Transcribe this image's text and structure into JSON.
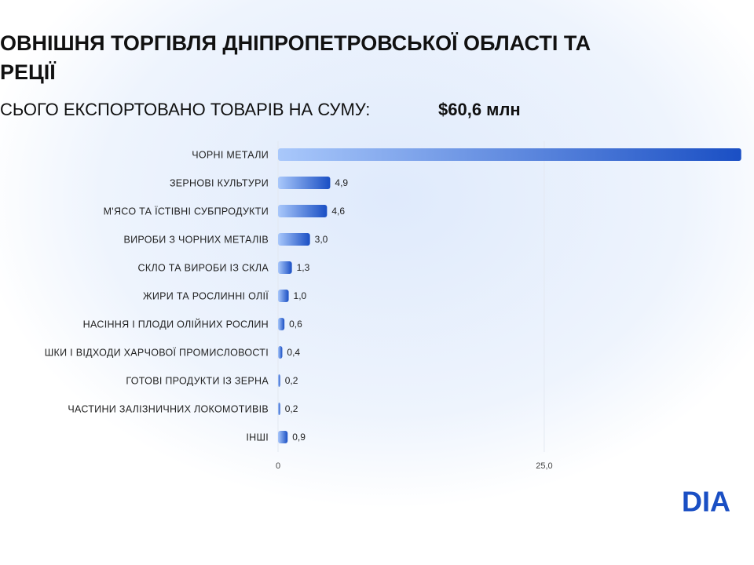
{
  "chart_data": {
    "type": "bar",
    "orientation": "horizontal",
    "title_lines": [
      "ОВНІШНЯ ТОРГІВЛЯ ДНІПРОПЕТРОВСЬКОЇ ОБЛАСТІ ТА",
      "РЕЦІЇ"
    ],
    "subtitle": "СЬОГО ЕКСПОРТОВАНО ТОВАРІВ НА СУМУ:",
    "subtitle_value": "$60,6 млн",
    "categories": [
      "ЧОРНІ МЕТАЛИ",
      "ЗЕРНОВІ КУЛЬТУРИ",
      "М'ЯСО ТА ЇСТІВНІ СУБПРОДУКТИ",
      "ВИРОБИ З ЧОРНИХ МЕТАЛІВ",
      "СКЛО ТА ВИРОБИ ІЗ СКЛА",
      "ЖИРИ ТА РОСЛИННІ ОЛІЇ",
      "НАСІННЯ І ПЛОДИ ОЛІЙНИХ РОСЛИН",
      "ШКИ І ВІДХОДИ ХАРЧОВОЇ ПРОМИСЛОВОСТІ",
      "ГОТОВІ ПРОДУКТИ ІЗ ЗЕРНА",
      "ЧАСТИНИ ЗАЛІЗНИЧНИХ ЛОКОМОТИВІВ",
      "ІНШІ"
    ],
    "values": [
      43.5,
      4.9,
      4.6,
      3.0,
      1.3,
      1.0,
      0.6,
      0.4,
      0.2,
      0.2,
      0.9
    ],
    "value_labels": [
      null,
      "4,9",
      "4,6",
      "3,0",
      "1,3",
      "1,0",
      "0,6",
      "0,4",
      "0,2",
      "0,2",
      "0,9"
    ],
    "color": "#1a4fc4",
    "xlim": [
      0,
      44.7
    ],
    "xticks": [
      0,
      {
        "value": 25,
        "label": "25,0"
      }
    ],
    "grid": true,
    "logo": "DIA"
  }
}
